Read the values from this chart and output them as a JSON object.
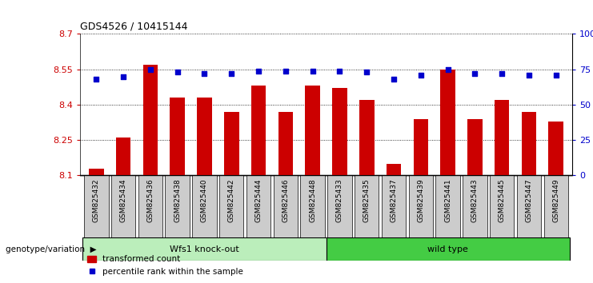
{
  "title": "GDS4526 / 10415144",
  "categories": [
    "GSM825432",
    "GSM825434",
    "GSM825436",
    "GSM825438",
    "GSM825440",
    "GSM825442",
    "GSM825444",
    "GSM825446",
    "GSM825448",
    "GSM825433",
    "GSM825435",
    "GSM825437",
    "GSM825439",
    "GSM825441",
    "GSM825443",
    "GSM825445",
    "GSM825447",
    "GSM825449"
  ],
  "bar_values": [
    8.13,
    8.26,
    8.57,
    8.43,
    8.43,
    8.37,
    8.48,
    8.37,
    8.48,
    8.47,
    8.42,
    8.15,
    8.34,
    8.55,
    8.34,
    8.42,
    8.37,
    8.33
  ],
  "percentile_values": [
    68,
    70,
    75,
    73,
    72,
    72,
    74,
    74,
    74,
    74,
    73,
    68,
    71,
    75,
    72,
    72,
    71,
    71
  ],
  "group1_label": "Wfs1 knock-out",
  "group2_label": "wild type",
  "group1_count": 9,
  "group2_count": 9,
  "ylim": [
    8.1,
    8.7
  ],
  "yticks_left": [
    8.1,
    8.25,
    8.4,
    8.55,
    8.7
  ],
  "yticks_right": [
    0,
    25,
    50,
    75,
    100
  ],
  "bar_color": "#cc0000",
  "dot_color": "#0000cc",
  "group1_bg": "#bbeebb",
  "group2_bg": "#44cc44",
  "tick_label_color_left": "#cc0000",
  "tick_label_color_right": "#0000cc",
  "legend_bar_label": "transformed count",
  "legend_dot_label": "percentile rank within the sample",
  "genotype_label": "genotype/variation",
  "background_color": "#ffffff",
  "xtick_bg_color": "#cccccc"
}
